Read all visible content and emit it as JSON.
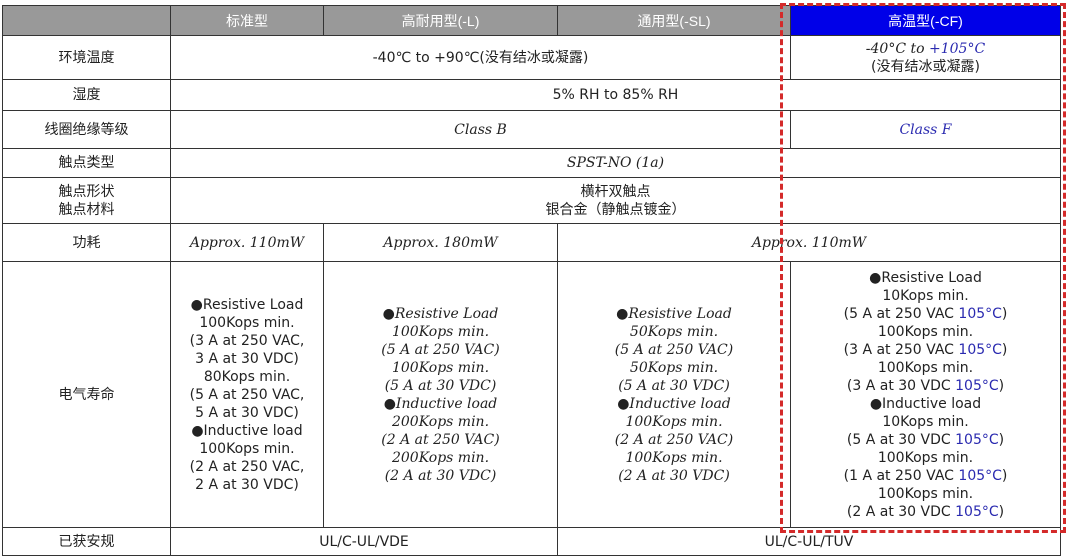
{
  "header": {
    "blank": "",
    "standard": "标准型",
    "high_durability": "高耐用型(-L)",
    "general": "通用型(-SL)",
    "high_temp": "高温型(-CF)"
  },
  "colors": {
    "header_bg": "#999999",
    "high_temp_header_bg": "#0000e8",
    "highlight_border": "#d42a2a",
    "accent_text": "#2a2ab0"
  },
  "rows": {
    "ambient_temp": {
      "label": "环境温度",
      "common": "-40℃ to +90℃(没有结冰或凝露)",
      "cf_line1_prefix": "-40°C to ",
      "cf_line1_value": "+105°C",
      "cf_line2": "(没有结冰或凝露)"
    },
    "humidity": {
      "label": "湿度",
      "value": "5% RH to 85% RH"
    },
    "insulation": {
      "label": "线圈绝缘等级",
      "common": "Class B",
      "cf": "Class F"
    },
    "contact_type": {
      "label": "触点类型",
      "value": "SPST-NO (1a)"
    },
    "contact_shape": {
      "label1": "触点形状",
      "label2": "触点材料",
      "value1": "横杆双触点",
      "value2": "银合金（静触点镀金）"
    },
    "power": {
      "label": "功耗",
      "standard": "Approx. 110mW",
      "high_durability": "Approx. 180mW",
      "others": "Approx. 110mW"
    },
    "electrical_life": {
      "label": "电气寿命",
      "standard": [
        "●Resistive Load",
        "100Kops min.",
        "(3 A at 250 VAC,",
        "3 A at 30 VDC)",
        "80Kops min.",
        "(5 A at 250 VAC,",
        "5 A at 30 VDC)",
        "●Inductive load",
        "100Kops min.",
        "(2 A at 250 VAC,",
        "2 A at 30 VDC)"
      ],
      "high_durability": [
        "●Resistive Load",
        "100Kops min.",
        "(5 A at 250 VAC)",
        "100Kops min.",
        "(5 A at 30 VDC)",
        "●Inductive load",
        "200Kops min.",
        "(2 A at 250 VAC)",
        "200Kops min.",
        "(2 A at 30 VDC)"
      ],
      "general": [
        "●Resistive Load",
        "50Kops min.",
        "(5 A at 250 VAC)",
        "50Kops min.",
        "(5 A at 30 VDC)",
        "●Inductive load",
        "100Kops min.",
        "(2 A at 250 VAC)",
        "100Kops min.",
        "(2 A at 30 VDC)"
      ],
      "high_temp": [
        {
          "text": "●Resistive Load",
          "temp": ""
        },
        {
          "text": "10Kops min.",
          "temp": ""
        },
        {
          "text": "(5 A at 250 VAC ",
          "temp": "105°C",
          "close": ")"
        },
        {
          "text": "100Kops min.",
          "temp": ""
        },
        {
          "text": "(3 A at 250 VAC ",
          "temp": "105°C",
          "close": ")"
        },
        {
          "text": "100Kops min.",
          "temp": ""
        },
        {
          "text": "(3 A at 30 VDC  ",
          "temp": "105°C",
          "close": ")"
        },
        {
          "text": "●Inductive load",
          "temp": ""
        },
        {
          "text": "10Kops min.",
          "temp": ""
        },
        {
          "text": "(5 A at 30 VDC ",
          "temp": "105°C",
          "close": ")"
        },
        {
          "text": "100Kops min.",
          "temp": ""
        },
        {
          "text": "(1 A at 250 VAC  ",
          "temp": "105°C",
          "close": ")"
        },
        {
          "text": "100Kops min.",
          "temp": ""
        },
        {
          "text": "(2 A at 30 VDC ",
          "temp": "105°C",
          "close": ")"
        }
      ]
    },
    "certification": {
      "label": "已获安规",
      "standard_l": "UL/C-UL/VDE",
      "sl_cf": "UL/C-UL/TUV"
    }
  }
}
